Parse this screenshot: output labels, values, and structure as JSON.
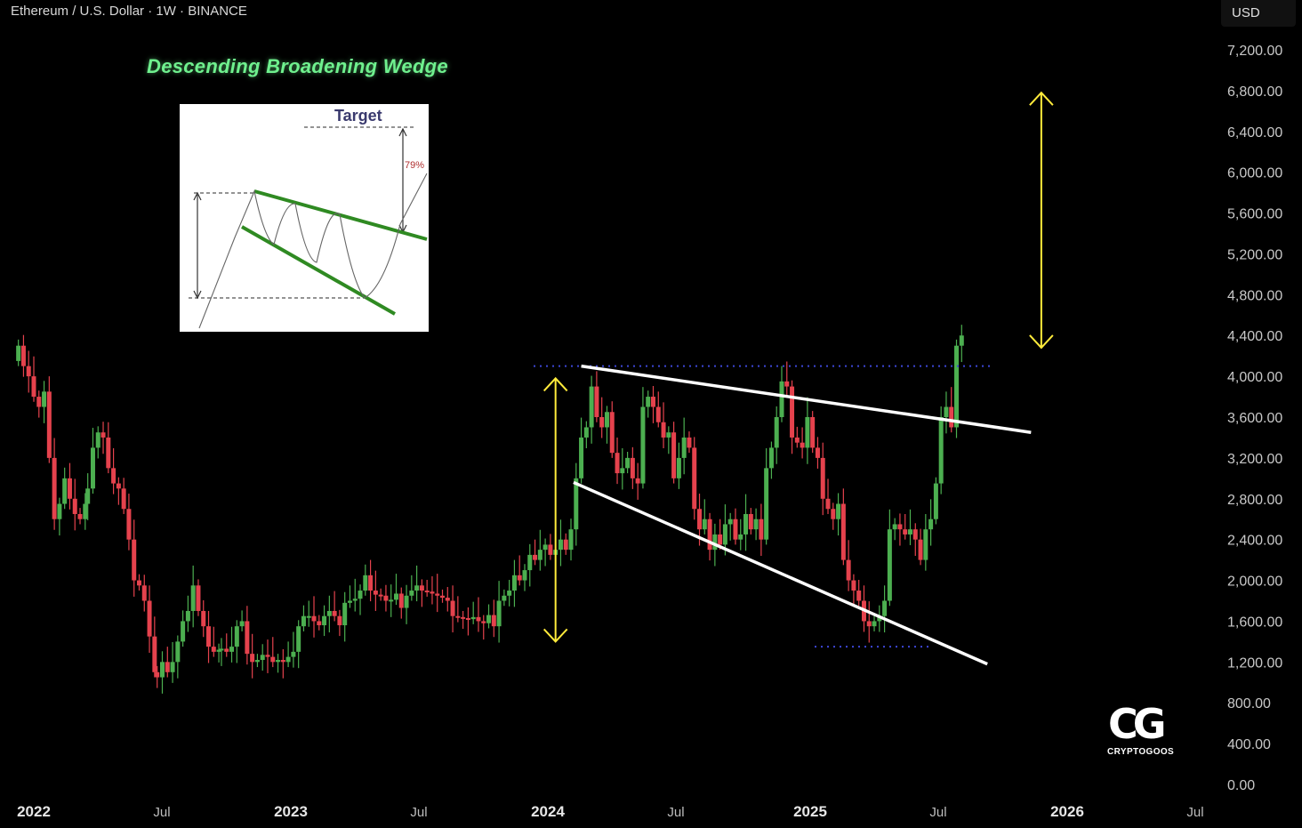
{
  "header": {
    "title": "Ethereum / U.S. Dollar · 1W · BINANCE"
  },
  "currency": {
    "label": "USD"
  },
  "pattern_title": "Descending Broadening Wedge",
  "inset": {
    "target_label": "Target",
    "percent_label": "79%"
  },
  "logo": {
    "mark": "CG",
    "text": "CRYPTOGOOS"
  },
  "colors": {
    "up": "#4caf50",
    "down": "#e5424d",
    "trendline": "#ffffff",
    "arrow": "#ffeb3b",
    "level": "#3d46d6",
    "title": "#6ff08e"
  },
  "chart_data": {
    "type": "candlestick",
    "title": "Ethereum / U.S. Dollar · 1W · BINANCE",
    "ylim": [
      0,
      7400
    ],
    "y_ticks": [
      "7,200.00",
      "6,800.00",
      "6,400.00",
      "6,000.00",
      "5,600.00",
      "5,200.00",
      "4,800.00",
      "4,400.00",
      "4,000.00",
      "3,600.00",
      "3,200.00",
      "2,800.00",
      "2,400.00",
      "2,000.00",
      "1,600.00",
      "1,200.00",
      "800.00",
      "400.00",
      "0.00"
    ],
    "x_ticks": [
      "2022",
      "Jul",
      "2023",
      "Jul",
      "2024",
      "Jul",
      "2025",
      "Jul",
      "2026",
      "Jul"
    ],
    "x_tick_bold": [
      true,
      false,
      true,
      false,
      true,
      false,
      true,
      false,
      true,
      false
    ],
    "x_range": [
      2022.0,
      2027.0
    ],
    "closes": [
      [
        2021.94,
        4300
      ],
      [
        2021.96,
        4100
      ],
      [
        2021.98,
        4000
      ],
      [
        2022.0,
        3800
      ],
      [
        2022.02,
        3700
      ],
      [
        2022.04,
        3850
      ],
      [
        2022.06,
        3200
      ],
      [
        2022.08,
        2600
      ],
      [
        2022.1,
        2750
      ],
      [
        2022.12,
        3000
      ],
      [
        2022.14,
        2800
      ],
      [
        2022.16,
        2650
      ],
      [
        2022.18,
        2600
      ],
      [
        2022.2,
        2750
      ],
      [
        2022.21,
        2900
      ],
      [
        2022.23,
        3300
      ],
      [
        2022.25,
        3450
      ],
      [
        2022.27,
        3400
      ],
      [
        2022.29,
        3100
      ],
      [
        2022.31,
        2950
      ],
      [
        2022.33,
        2900
      ],
      [
        2022.35,
        2700
      ],
      [
        2022.37,
        2400
      ],
      [
        2022.39,
        2000
      ],
      [
        2022.41,
        1950
      ],
      [
        2022.43,
        1800
      ],
      [
        2022.45,
        1450
      ],
      [
        2022.47,
        1100
      ],
      [
        2022.48,
        1050
      ],
      [
        2022.5,
        1200
      ],
      [
        2022.52,
        1100
      ],
      [
        2022.54,
        1200
      ],
      [
        2022.56,
        1400
      ],
      [
        2022.58,
        1600
      ],
      [
        2022.6,
        1700
      ],
      [
        2022.62,
        1950
      ],
      [
        2022.64,
        1700
      ],
      [
        2022.66,
        1550
      ],
      [
        2022.68,
        1350
      ],
      [
        2022.7,
        1300
      ],
      [
        2022.72,
        1320
      ],
      [
        2022.73,
        1330
      ],
      [
        2022.75,
        1300
      ],
      [
        2022.77,
        1350
      ],
      [
        2022.79,
        1550
      ],
      [
        2022.81,
        1600
      ],
      [
        2022.83,
        1280
      ],
      [
        2022.85,
        1200
      ],
      [
        2022.87,
        1220
      ],
      [
        2022.89,
        1270
      ],
      [
        2022.91,
        1250
      ],
      [
        2022.93,
        1200
      ],
      [
        2022.95,
        1220
      ],
      [
        2022.97,
        1200
      ],
      [
        2022.99,
        1250
      ],
      [
        2023.01,
        1300
      ],
      [
        2023.03,
        1550
      ],
      [
        2023.05,
        1650
      ],
      [
        2023.07,
        1650
      ],
      [
        2023.09,
        1600
      ],
      [
        2023.11,
        1560
      ],
      [
        2023.13,
        1650
      ],
      [
        2023.15,
        1700
      ],
      [
        2023.17,
        1650
      ],
      [
        2023.19,
        1560
      ],
      [
        2023.21,
        1780
      ],
      [
        2023.23,
        1800
      ],
      [
        2023.25,
        1820
      ],
      [
        2023.27,
        1900
      ],
      [
        2023.29,
        2050
      ],
      [
        2023.31,
        1900
      ],
      [
        2023.33,
        1860
      ],
      [
        2023.35,
        1850
      ],
      [
        2023.37,
        1800
      ],
      [
        2023.39,
        1810
      ],
      [
        2023.41,
        1870
      ],
      [
        2023.43,
        1730
      ],
      [
        2023.45,
        1850
      ],
      [
        2023.47,
        1900
      ],
      [
        2023.49,
        1950
      ],
      [
        2023.51,
        1900
      ],
      [
        2023.53,
        1890
      ],
      [
        2023.55,
        1870
      ],
      [
        2023.57,
        1850
      ],
      [
        2023.59,
        1830
      ],
      [
        2023.61,
        1800
      ],
      [
        2023.63,
        1650
      ],
      [
        2023.65,
        1640
      ],
      [
        2023.67,
        1630
      ],
      [
        2023.69,
        1620
      ],
      [
        2023.71,
        1640
      ],
      [
        2023.73,
        1600
      ],
      [
        2023.75,
        1580
      ],
      [
        2023.77,
        1660
      ],
      [
        2023.79,
        1550
      ],
      [
        2023.81,
        1800
      ],
      [
        2023.83,
        1850
      ],
      [
        2023.85,
        1900
      ],
      [
        2023.87,
        2050
      ],
      [
        2023.89,
        2000
      ],
      [
        2023.91,
        2100
      ],
      [
        2023.93,
        2250
      ],
      [
        2023.95,
        2200
      ],
      [
        2023.97,
        2300
      ],
      [
        2023.99,
        2350
      ],
      [
        2024.01,
        2250
      ],
      [
        2024.03,
        2300
      ],
      [
        2024.05,
        2400
      ],
      [
        2024.07,
        2300
      ],
      [
        2024.09,
        2500
      ],
      [
        2024.11,
        3000
      ],
      [
        2024.13,
        3400
      ],
      [
        2024.15,
        3500
      ],
      [
        2024.17,
        3900
      ],
      [
        2024.19,
        3600
      ],
      [
        2024.21,
        3500
      ],
      [
        2024.23,
        3650
      ],
      [
        2024.25,
        3250
      ],
      [
        2024.27,
        3050
      ],
      [
        2024.29,
        3100
      ],
      [
        2024.31,
        3200
      ],
      [
        2024.33,
        3000
      ],
      [
        2024.35,
        2950
      ],
      [
        2024.37,
        3700
      ],
      [
        2024.39,
        3800
      ],
      [
        2024.41,
        3700
      ],
      [
        2024.43,
        3550
      ],
      [
        2024.45,
        3400
      ],
      [
        2024.47,
        3450
      ],
      [
        2024.49,
        3000
      ],
      [
        2024.51,
        3200
      ],
      [
        2024.53,
        3400
      ],
      [
        2024.55,
        3300
      ],
      [
        2024.57,
        2700
      ],
      [
        2024.59,
        2500
      ],
      [
        2024.61,
        2600
      ],
      [
        2024.63,
        2300
      ],
      [
        2024.65,
        2450
      ],
      [
        2024.67,
        2350
      ],
      [
        2024.69,
        2550
      ],
      [
        2024.71,
        2600
      ],
      [
        2024.73,
        2400
      ],
      [
        2024.75,
        2450
      ],
      [
        2024.77,
        2650
      ],
      [
        2024.79,
        2500
      ],
      [
        2024.81,
        2600
      ],
      [
        2024.83,
        2400
      ],
      [
        2024.85,
        3100
      ],
      [
        2024.87,
        3300
      ],
      [
        2024.89,
        3600
      ],
      [
        2024.91,
        3950
      ],
      [
        2024.93,
        3900
      ],
      [
        2024.95,
        3400
      ],
      [
        2024.97,
        3350
      ],
      [
        2024.99,
        3300
      ],
      [
        2025.01,
        3600
      ],
      [
        2025.03,
        3300
      ],
      [
        2025.05,
        3200
      ],
      [
        2025.07,
        2800
      ],
      [
        2025.09,
        2700
      ],
      [
        2025.11,
        2600
      ],
      [
        2025.13,
        2750
      ],
      [
        2025.15,
        2200
      ],
      [
        2025.17,
        2000
      ],
      [
        2025.19,
        1900
      ],
      [
        2025.21,
        1800
      ],
      [
        2025.23,
        1600
      ],
      [
        2025.25,
        1550
      ],
      [
        2025.27,
        1600
      ],
      [
        2025.29,
        1650
      ],
      [
        2025.31,
        1800
      ],
      [
        2025.33,
        2500
      ],
      [
        2025.35,
        2550
      ],
      [
        2025.37,
        2500
      ],
      [
        2025.39,
        2450
      ],
      [
        2025.41,
        2500
      ],
      [
        2025.43,
        2400
      ],
      [
        2025.45,
        2200
      ],
      [
        2025.47,
        2500
      ],
      [
        2025.49,
        2600
      ],
      [
        2025.51,
        2950
      ],
      [
        2025.53,
        3600
      ],
      [
        2025.55,
        3700
      ],
      [
        2025.57,
        3500
      ],
      [
        2025.59,
        4300
      ],
      [
        2025.61,
        4400
      ]
    ],
    "annotations": {
      "resistance_level": 4100,
      "support_level": 1350,
      "upper_trendline": [
        [
          2024.13,
          4100
        ],
        [
          2025.88,
          3450
        ]
      ],
      "lower_trendline": [
        [
          2024.1,
          2960
        ],
        [
          2025.71,
          1180
        ]
      ],
      "pattern_height_arrow": {
        "x": 2024.03,
        "from": 1400,
        "to": 3980
      },
      "target_arrow": {
        "x": 2025.92,
        "from": 4280,
        "to": 6780
      }
    }
  }
}
